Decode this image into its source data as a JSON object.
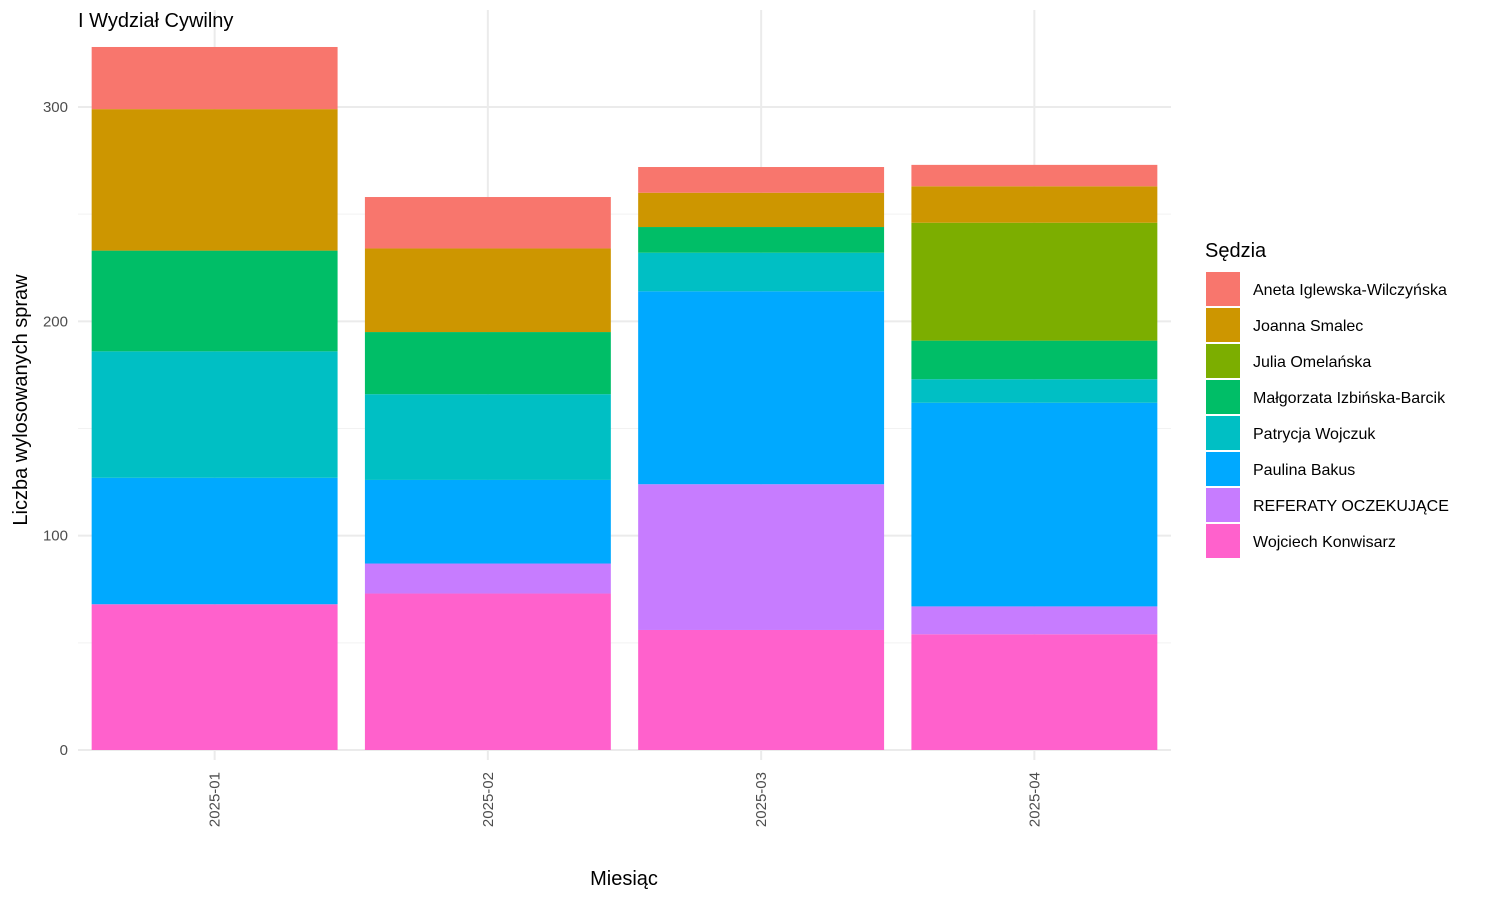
{
  "chart_data": {
    "type": "bar",
    "stacked": true,
    "title": "I Wydział Cywilny",
    "xlabel": "Miesiąc",
    "ylabel": "Liczba wylosowanych spraw",
    "ylim": [
      0,
      330
    ],
    "yticks": [
      0,
      100,
      200,
      300
    ],
    "grid": true,
    "legend": {
      "title": "Sędzia",
      "position": "right"
    },
    "categories": [
      "2025-01",
      "2025-02",
      "2025-03",
      "2025-04"
    ],
    "series": [
      {
        "name": "Wojciech Konwisarz",
        "color": "#FF61CC",
        "values": [
          68,
          73,
          56,
          54
        ]
      },
      {
        "name": "REFERATY OCZEKUJĄCE",
        "color": "#C77CFF",
        "values": [
          0,
          14,
          68,
          13
        ]
      },
      {
        "name": "Paulina Bakus",
        "color": "#00A9FF",
        "values": [
          59,
          39,
          90,
          95
        ]
      },
      {
        "name": "Patrycja Wojczuk",
        "color": "#00BFC4",
        "values": [
          59,
          40,
          18,
          11
        ]
      },
      {
        "name": "Małgorzata Izbińska-Barcik",
        "color": "#00BE67",
        "values": [
          47,
          29,
          12,
          18
        ]
      },
      {
        "name": "Julia Omelańska",
        "color": "#7CAE00",
        "values": [
          0,
          0,
          0,
          55
        ]
      },
      {
        "name": "Joanna Smalec",
        "color": "#CD9600",
        "values": [
          66,
          39,
          16,
          17
        ]
      },
      {
        "name": "Aneta Iglewska-Wilczyńska",
        "color": "#F8766D",
        "values": [
          29,
          24,
          12,
          10
        ]
      }
    ],
    "legend_order": [
      "Aneta Iglewska-Wilczyńska",
      "Joanna Smalec",
      "Julia Omelańska",
      "Małgorzata Izbińska-Barcik",
      "Patrycja Wojczuk",
      "Paulina Bakus",
      "REFERATY OCZEKUJĄCE",
      "Wojciech Konwisarz"
    ]
  }
}
